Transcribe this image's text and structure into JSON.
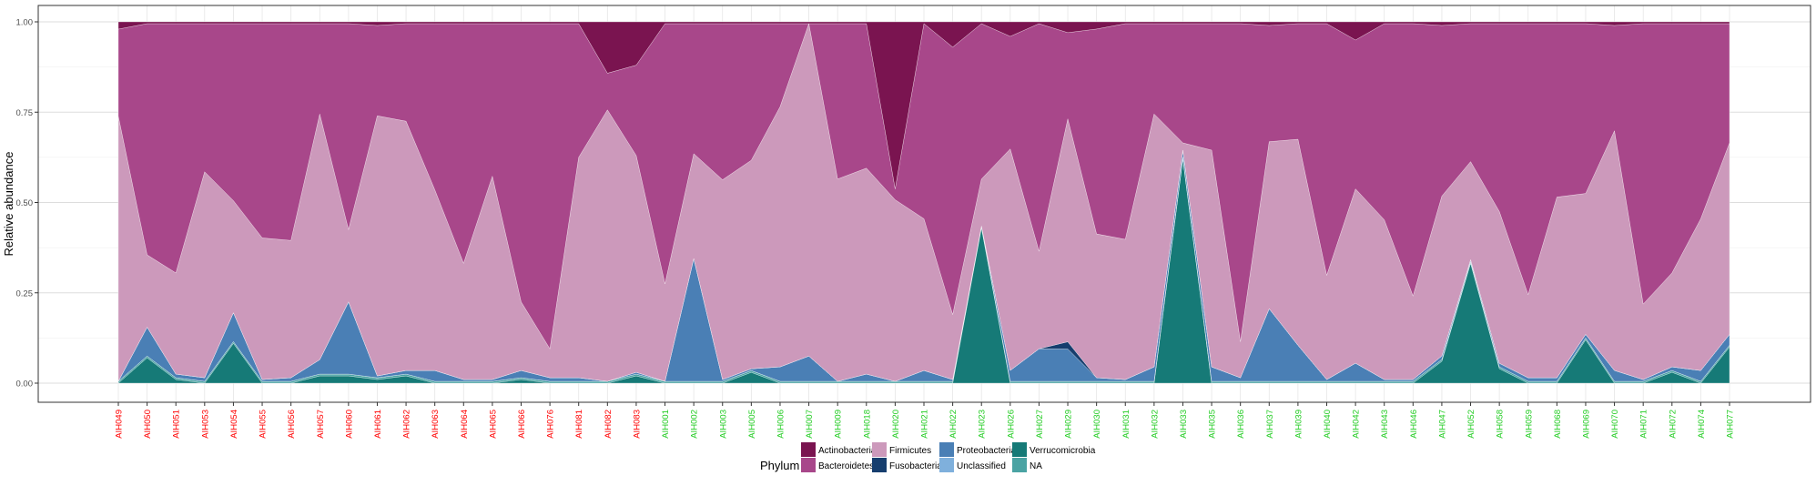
{
  "chart_data": {
    "type": "area",
    "stacked": true,
    "normalized": true,
    "ylabel": "Relative abundance",
    "xlabel": "",
    "ylim": [
      0,
      1
    ],
    "yticks": [
      0,
      0.25,
      0.5,
      0.75,
      1
    ],
    "ytick_labels": [
      "0.00",
      "0.25",
      "0.50",
      "0.75",
      "1.00"
    ],
    "grid": true,
    "legend_position": "bottom",
    "legend_title": "Phylum",
    "group_colors": {
      "group_a": "#ff0000",
      "group_b": "#22cc22"
    },
    "samples": [
      "AIH049",
      "AIH050",
      "AIH051",
      "AIH053",
      "AIH054",
      "AIH055",
      "AIH056",
      "AIH057",
      "AIH060",
      "AIH061",
      "AIH062",
      "AIH063",
      "AIH064",
      "AIH065",
      "AIH066",
      "AIH076",
      "AIH081",
      "AIH082",
      "AIH083",
      "AIH001",
      "AIH002",
      "AIH003",
      "AIH005",
      "AIH006",
      "AIH007",
      "AIH009",
      "AIH018",
      "AIH020",
      "AIH021",
      "AIH022",
      "AIH023",
      "AIH026",
      "AIH027",
      "AIH029",
      "AIH030",
      "AIH031",
      "AIH032",
      "AIH033",
      "AIH035",
      "AIH036",
      "AIH037",
      "AIH039",
      "AIH040",
      "AIH042",
      "AIH043",
      "AIH046",
      "AIH047",
      "AIH052",
      "AIH058",
      "AIH059",
      "AIH068",
      "AIH069",
      "AIH070",
      "AIH071",
      "AIH072",
      "AIH074",
      "AIH077"
    ],
    "sample_groups": [
      "a",
      "a",
      "a",
      "a",
      "a",
      "a",
      "a",
      "a",
      "a",
      "a",
      "a",
      "a",
      "a",
      "a",
      "a",
      "a",
      "a",
      "a",
      "a",
      "b",
      "b",
      "b",
      "b",
      "b",
      "b",
      "b",
      "b",
      "b",
      "b",
      "b",
      "b",
      "b",
      "b",
      "b",
      "b",
      "b",
      "b",
      "b",
      "b",
      "b",
      "b",
      "b",
      "b",
      "b",
      "b",
      "b",
      "b",
      "b",
      "b",
      "b",
      "b",
      "b",
      "b",
      "b",
      "b",
      "b",
      "b"
    ],
    "series": [
      {
        "name": "Verrucomicrobia",
        "color": "#167a77",
        "values": [
          0,
          0.07,
          0.01,
          0,
          0.11,
          0,
          0,
          0.02,
          0.02,
          0.01,
          0.02,
          0,
          0,
          0,
          0.01,
          0,
          0,
          0,
          0.02,
          0,
          0,
          0,
          0.03,
          0,
          0,
          0,
          0,
          0,
          0,
          0,
          0.43,
          0,
          0,
          0,
          0,
          0,
          0,
          0.62,
          0,
          0,
          0,
          0,
          0,
          0,
          0,
          0,
          0.06,
          0.33,
          0.04,
          0,
          0,
          0.12,
          0,
          0,
          0.03,
          0,
          0.1
        ]
      },
      {
        "name": "NA",
        "color": "#4aa3a3",
        "values": [
          0.005,
          0.005,
          0.005,
          0.005,
          0.005,
          0.005,
          0.005,
          0.005,
          0.005,
          0.005,
          0.005,
          0.005,
          0.005,
          0.005,
          0.005,
          0.005,
          0.005,
          0.005,
          0.005,
          0.005,
          0.005,
          0.005,
          0.005,
          0.005,
          0.005,
          0.005,
          0.005,
          0.005,
          0.005,
          0.005,
          0.005,
          0.005,
          0.005,
          0.005,
          0.005,
          0.005,
          0.005,
          0.005,
          0.005,
          0.005,
          0.005,
          0.005,
          0.005,
          0.005,
          0.005,
          0.005,
          0.005,
          0.005,
          0.005,
          0.005,
          0.005,
          0.005,
          0.005,
          0.005,
          0.005,
          0.005,
          0.005
        ]
      },
      {
        "name": "Unclassified",
        "color": "#7fb0dc",
        "values": [
          0,
          0,
          0,
          0,
          0,
          0,
          0,
          0,
          0,
          0,
          0,
          0,
          0,
          0,
          0,
          0,
          0,
          0,
          0,
          0,
          0,
          0,
          0,
          0,
          0,
          0,
          0,
          0,
          0,
          0,
          0,
          0,
          0,
          0,
          0,
          0,
          0,
          0,
          0,
          0,
          0,
          0,
          0,
          0,
          0,
          0,
          0,
          0,
          0,
          0,
          0,
          0,
          0,
          0,
          0,
          0,
          0
        ]
      },
      {
        "name": "Proteobacteria",
        "color": "#4a7fb5",
        "values": [
          0,
          0.08,
          0.01,
          0.01,
          0.08,
          0.005,
          0.01,
          0.04,
          0.2,
          0.005,
          0.01,
          0.03,
          0.005,
          0.005,
          0.02,
          0.01,
          0.01,
          0,
          0.005,
          0,
          0.34,
          0.005,
          0.005,
          0.04,
          0.07,
          0,
          0.02,
          0,
          0.03,
          0.005,
          0,
          0.03,
          0.09,
          0.09,
          0.01,
          0.005,
          0.04,
          0.02,
          0.04,
          0.01,
          0.2,
          0.1,
          0.005,
          0.05,
          0.005,
          0.005,
          0.01,
          0.005,
          0.01,
          0.01,
          0.01,
          0.01,
          0.03,
          0.005,
          0.01,
          0.03,
          0.03
        ]
      },
      {
        "name": "Fusobacteria",
        "color": "#163e6e",
        "values": [
          0,
          0,
          0,
          0,
          0,
          0,
          0,
          0,
          0,
          0,
          0,
          0,
          0,
          0,
          0,
          0,
          0,
          0,
          0,
          0,
          0,
          0,
          0,
          0,
          0,
          0,
          0,
          0,
          0,
          0,
          0,
          0,
          0,
          0.02,
          0,
          0,
          0,
          0,
          0,
          0,
          0,
          0,
          0,
          0,
          0,
          0,
          0,
          0,
          0,
          0,
          0,
          0,
          0,
          0,
          0,
          0,
          0
        ]
      },
      {
        "name": "Firmicutes",
        "color": "#cc99bb",
        "values": [
          0.73,
          0.2,
          0.28,
          0.57,
          0.31,
          0.39,
          0.38,
          0.68,
          0.2,
          0.72,
          0.69,
          0.5,
          0.32,
          0.56,
          0.19,
          0.08,
          0.61,
          0.74,
          0.6,
          0.27,
          0.29,
          0.55,
          0.58,
          0.72,
          0.92,
          0.56,
          0.57,
          0.5,
          0.42,
          0.18,
          0.13,
          0.61,
          0.27,
          0.62,
          0.4,
          0.39,
          0.7,
          0.02,
          0.6,
          0.1,
          0.46,
          0.57,
          0.29,
          0.48,
          0.44,
          0.23,
          0.44,
          0.27,
          0.42,
          0.23,
          0.5,
          0.39,
          0.66,
          0.21,
          0.26,
          0.42,
          0.53
        ]
      },
      {
        "name": "Bacteroidetes",
        "color": "#a8478a",
        "values": [
          0.24,
          0.64,
          0.69,
          0.41,
          0.49,
          0.59,
          0.6,
          0.25,
          0.57,
          0.25,
          0.27,
          0.46,
          0.66,
          0.42,
          0.77,
          0.9,
          0.37,
          0.1,
          0.25,
          0.72,
          0.36,
          0.43,
          0.38,
          0.23,
          0.0,
          0.43,
          0.4,
          0.03,
          0.54,
          0.74,
          0.43,
          0.31,
          0.63,
          0.24,
          0.57,
          0.6,
          0.25,
          0.33,
          0.35,
          0.88,
          0.32,
          0.32,
          0.7,
          0.41,
          0.54,
          0.75,
          0.47,
          0.38,
          0.52,
          0.75,
          0.48,
          0.47,
          0.29,
          0.78,
          0.69,
          0.54,
          0.33
        ]
      },
      {
        "name": "Actinobacteria",
        "color": "#7a1450",
        "values": [
          0.02,
          0.005,
          0.005,
          0.005,
          0.005,
          0.005,
          0.005,
          0.005,
          0.005,
          0.01,
          0.005,
          0.005,
          0.005,
          0.005,
          0.005,
          0.005,
          0.005,
          0.14,
          0.12,
          0.005,
          0.005,
          0.005,
          0.005,
          0.005,
          0.005,
          0.005,
          0.005,
          0.46,
          0.005,
          0.07,
          0.005,
          0.04,
          0.005,
          0.03,
          0.02,
          0.005,
          0.005,
          0.005,
          0.005,
          0.005,
          0.01,
          0.005,
          0.005,
          0.05,
          0.005,
          0.005,
          0.01,
          0.005,
          0.005,
          0.005,
          0.005,
          0.005,
          0.01,
          0.005,
          0.005,
          0.005,
          0.005
        ]
      }
    ],
    "legend": [
      {
        "name": "Actinobacteria",
        "color": "#7a1450"
      },
      {
        "name": "Bacteroidetes",
        "color": "#a8478a"
      },
      {
        "name": "Firmicutes",
        "color": "#cc99bb"
      },
      {
        "name": "Fusobacteria",
        "color": "#163e6e"
      },
      {
        "name": "Proteobacteria",
        "color": "#4a7fb5"
      },
      {
        "name": "Unclassified",
        "color": "#7fb0dc"
      },
      {
        "name": "Verrucomicrobia",
        "color": "#167a77"
      },
      {
        "name": "NA",
        "color": "#4aa3a3"
      }
    ]
  }
}
